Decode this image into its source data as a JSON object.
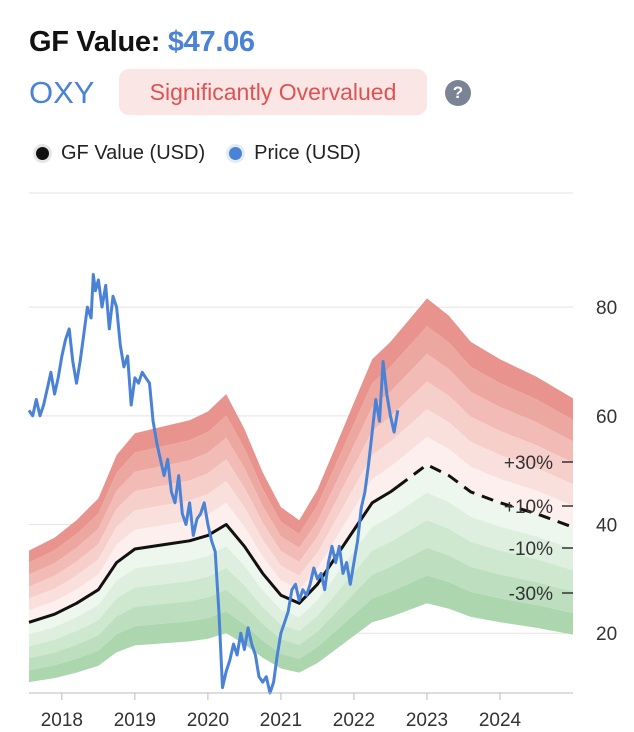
{
  "header": {
    "title_prefix": "GF Value:",
    "title_value": "$47.06",
    "ticker": "OXY",
    "badge": "Significantly Overvalued",
    "help": "?"
  },
  "legend": [
    {
      "label": "GF Value (USD)",
      "color": "#111111"
    },
    {
      "label": "Price (USD)",
      "color": "#4a82d6"
    }
  ],
  "chart_data": {
    "type": "line",
    "x_ticks": [
      "2018",
      "2019",
      "2020",
      "2021",
      "2022",
      "2023",
      "2024"
    ],
    "y_ticks": [
      20,
      40,
      60,
      80
    ],
    "ylim": [
      9,
      101
    ],
    "xlim": [
      2017.55,
      2025.0
    ],
    "band_labels": [
      "+30%",
      "+10%",
      "-10%",
      "-30%"
    ],
    "colors": {
      "price": "#4a82d6",
      "gf_value": "#111111",
      "over": "#e58a84",
      "under": "#9fd0a0"
    },
    "gf_value": {
      "x": [
        2017.55,
        2017.9,
        2018.2,
        2018.5,
        2018.75,
        2019.0,
        2019.5,
        2019.75,
        2020.0,
        2020.25,
        2020.5,
        2020.75,
        2021.0,
        2021.25,
        2021.5,
        2021.75,
        2022.0,
        2022.25,
        2022.5,
        2022.75,
        2023.0,
        2023.3,
        2023.6,
        2024.0,
        2024.5,
        2025.0
      ],
      "values": [
        22,
        23.5,
        25.5,
        28,
        33,
        35.5,
        36.5,
        37,
        38,
        40,
        36,
        31,
        27,
        25.5,
        29,
        34,
        39,
        44,
        46,
        48.5,
        51,
        49,
        46,
        44,
        42,
        39.5
      ]
    },
    "gf_value_estimated_from": 2022.6,
    "price": {
      "x": [
        2017.55,
        2017.6,
        2017.65,
        2017.7,
        2017.75,
        2017.8,
        2017.85,
        2017.9,
        2017.95,
        2018.0,
        2018.05,
        2018.1,
        2018.15,
        2018.2,
        2018.25,
        2018.3,
        2018.35,
        2018.4,
        2018.43,
        2018.46,
        2018.5,
        2018.55,
        2018.6,
        2018.65,
        2018.7,
        2018.75,
        2018.8,
        2018.85,
        2018.9,
        2018.95,
        2019.0,
        2019.05,
        2019.1,
        2019.15,
        2019.2,
        2019.25,
        2019.3,
        2019.35,
        2019.4,
        2019.45,
        2019.5,
        2019.55,
        2019.6,
        2019.65,
        2019.7,
        2019.75,
        2019.8,
        2019.85,
        2019.9,
        2019.95,
        2020.0,
        2020.05,
        2020.1,
        2020.15,
        2020.2,
        2020.25,
        2020.3,
        2020.35,
        2020.4,
        2020.45,
        2020.5,
        2020.55,
        2020.6,
        2020.65,
        2020.7,
        2020.75,
        2020.8,
        2020.85,
        2020.9,
        2020.95,
        2021.0,
        2021.05,
        2021.1,
        2021.15,
        2021.2,
        2021.25,
        2021.3,
        2021.35,
        2021.4,
        2021.45,
        2021.5,
        2021.55,
        2021.6,
        2021.65,
        2021.7,
        2021.75,
        2021.8,
        2021.85,
        2021.9,
        2021.95,
        2022.0,
        2022.05,
        2022.1,
        2022.15,
        2022.2,
        2022.25,
        2022.3,
        2022.35,
        2022.4,
        2022.45,
        2022.5,
        2022.55,
        2022.6
      ],
      "values": [
        61,
        60,
        63,
        60,
        62,
        65,
        68,
        64,
        67,
        71,
        74,
        76,
        70,
        66,
        70,
        75,
        80,
        78,
        86,
        83,
        85,
        80,
        84,
        76,
        82,
        80,
        73,
        69,
        71,
        62,
        67,
        66,
        68,
        67,
        66,
        59,
        55,
        52,
        49,
        52,
        46,
        44,
        49,
        42,
        40,
        44,
        38,
        41,
        42,
        44,
        40,
        37,
        35,
        24,
        10,
        13,
        15,
        18,
        16,
        20,
        17,
        21,
        18,
        16,
        12,
        11,
        12,
        9,
        11,
        16,
        20,
        22,
        24,
        28,
        29,
        26,
        28,
        27,
        29,
        32,
        30,
        31,
        28,
        33,
        36,
        33,
        36,
        31,
        33,
        29,
        33,
        37,
        43,
        46,
        51,
        57,
        63,
        59,
        70,
        64,
        60,
        57,
        61
      ]
    }
  }
}
